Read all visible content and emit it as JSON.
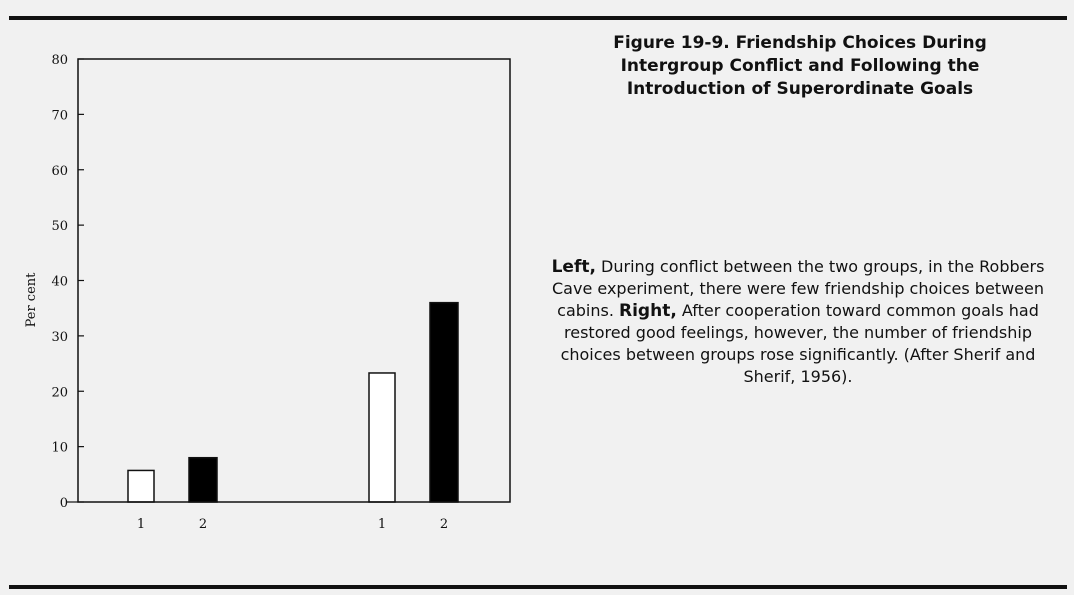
{
  "caption": {
    "title": "Figure 19-9. Friendship Choices During\nIntergroup Conflict and Following the\nIntroduction of Superordinate Goals",
    "left_label": "Left,",
    "left_text": " During conflict between the two groups, in the Robbers Cave experiment, there were few friendship choices between cabins. ",
    "right_label": "Right,",
    "right_text": " After cooperation toward common goals had restored good feelings, however, the number of friendship choices between groups rose significantly. (After Sherif and Sherif, 1956)."
  },
  "chart_data": {
    "type": "bar",
    "title": "",
    "xlabel": "",
    "ylabel": "Per cent",
    "ylim": [
      0,
      80
    ],
    "yticks": [
      0,
      10,
      20,
      30,
      40,
      50,
      60,
      70,
      80
    ],
    "grid": false,
    "legend": "none",
    "groups": [
      {
        "categories": [
          "1",
          "2"
        ],
        "values": [
          5.7,
          8.0
        ],
        "fills": [
          "#ffffff",
          "#000000"
        ]
      },
      {
        "categories": [
          "1",
          "2"
        ],
        "values": [
          23.3,
          36.0
        ],
        "fills": [
          "#ffffff",
          "#000000"
        ]
      }
    ]
  }
}
